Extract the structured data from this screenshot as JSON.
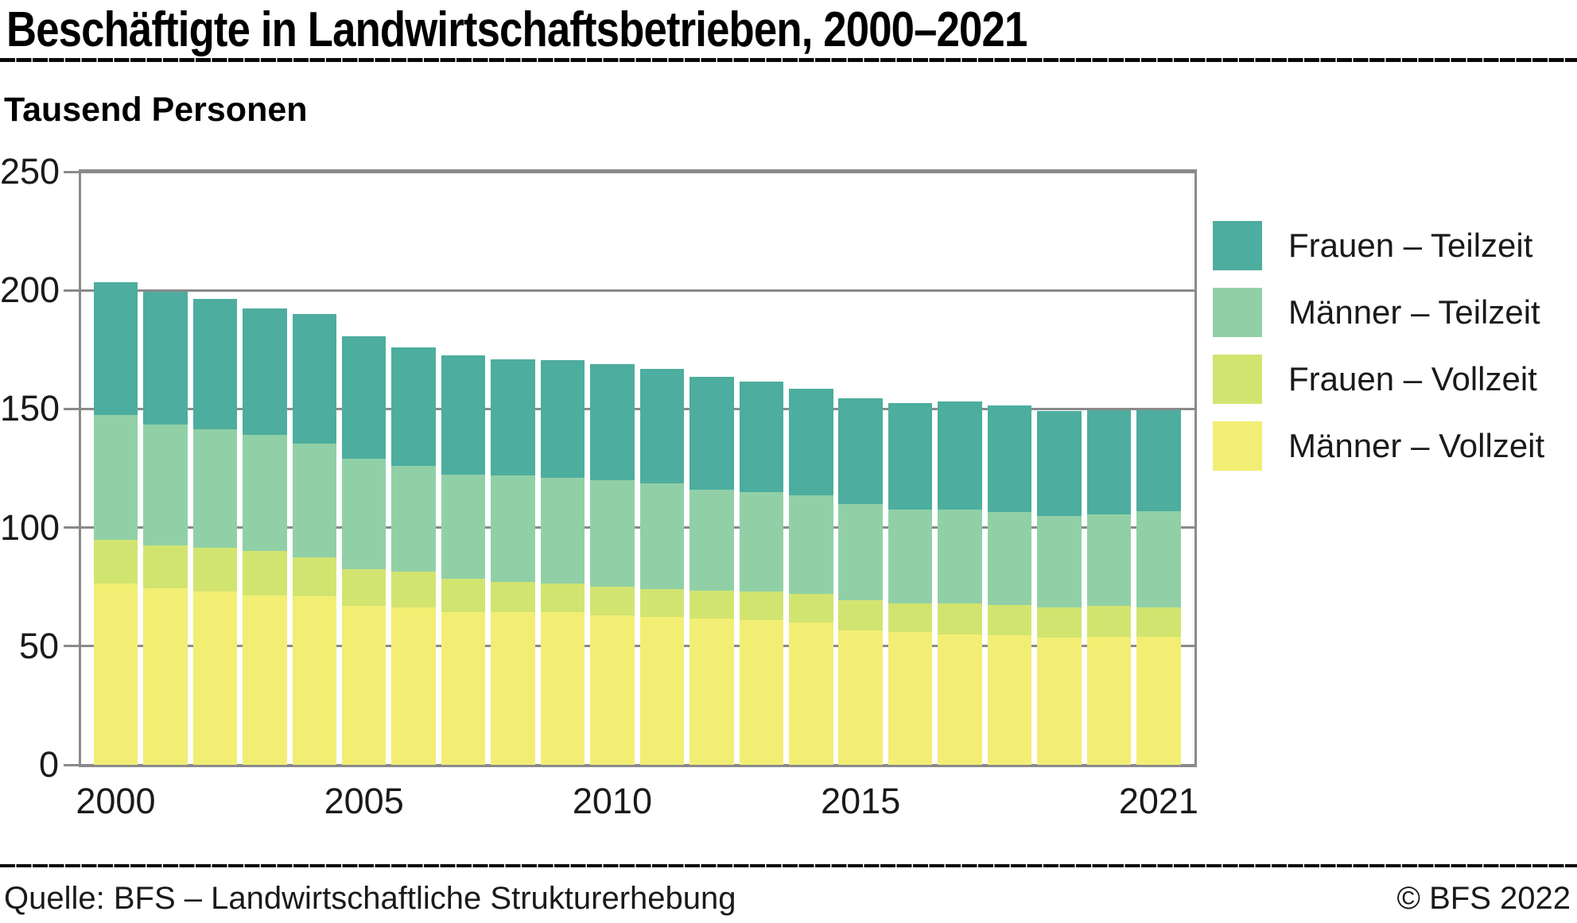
{
  "title": "Beschäftigte in Landwirtschaftsbetrieben, 2000–2021",
  "subtitle": "Tausend Personen",
  "footer": {
    "source": "Quelle: BFS – Landwirtschaftliche Strukturerhebung",
    "copyright": "© BFS 2022"
  },
  "colors": {
    "frauen_teilzeit": "#4DAD9E",
    "maenner_teilzeit": "#91D0A7",
    "frauen_vollzeit": "#D2E470",
    "maenner_vollzeit": "#F2EE74",
    "grid": "#8a8a8a",
    "rule": "#0a0a0a",
    "text": "#1a1a1a"
  },
  "legend": {
    "items": [
      {
        "label": "Frauen – Teilzeit",
        "color": "#4DAD9E"
      },
      {
        "label": "Männer – Teilzeit",
        "color": "#91D0A7"
      },
      {
        "label": "Frauen – Vollzeit",
        "color": "#D2E470"
      },
      {
        "label": "Männer – Vollzeit",
        "color": "#F2EE74"
      }
    ]
  },
  "chart_data": {
    "type": "bar",
    "stacked": true,
    "title": "Beschäftigte in Landwirtschaftsbetrieben, 2000–2021",
    "unit_label": "Tausend Personen",
    "categories": [
      2000,
      2001,
      2002,
      2003,
      2004,
      2005,
      2006,
      2007,
      2008,
      2009,
      2010,
      2011,
      2012,
      2013,
      2014,
      2015,
      2016,
      2017,
      2018,
      2019,
      2020,
      2021
    ],
    "series": [
      {
        "name": "Männer – Vollzeit",
        "color": "#F2EE74",
        "values": [
          76.5,
          74.5,
          73,
          71.5,
          71,
          67,
          66.5,
          64.5,
          64.5,
          64.5,
          63,
          62.5,
          61.5,
          61,
          60,
          56.5,
          56,
          55,
          54.5,
          53.5,
          54,
          54
        ]
      },
      {
        "name": "Frauen – Vollzeit",
        "color": "#D2E470",
        "values": [
          18.5,
          18,
          18.5,
          18.5,
          16.5,
          15.5,
          15,
          14,
          12.5,
          12,
          12,
          11.5,
          12,
          12,
          12,
          13,
          12,
          13,
          13,
          13,
          13,
          12.5
        ]
      },
      {
        "name": "Männer – Teilzeit",
        "color": "#91D0A7",
        "values": [
          52.5,
          51,
          50,
          49,
          48,
          46.5,
          44.5,
          44,
          45,
          44.5,
          45,
          44.5,
          42.5,
          42,
          41.5,
          40.5,
          39.5,
          39.5,
          39,
          38.5,
          38.5,
          40.5
        ]
      },
      {
        "name": "Frauen – Teilzeit",
        "color": "#4DAD9E",
        "values": [
          56,
          56,
          55,
          53.5,
          54.5,
          51.5,
          50,
          50,
          49,
          49.5,
          49,
          48.5,
          47.5,
          46.5,
          45,
          44.5,
          45,
          45.5,
          45,
          44,
          44,
          42.5
        ]
      }
    ],
    "totals": [
      203.5,
      199.5,
      196.5,
      192.5,
      190,
      180.5,
      176,
      172.5,
      171,
      170.5,
      169,
      167,
      163.5,
      161.5,
      158.5,
      154.5,
      152.5,
      153,
      151.5,
      149,
      149.5,
      149.5
    ],
    "ylim": [
      0,
      250
    ],
    "y_ticks": [
      0,
      50,
      100,
      150,
      200,
      250
    ],
    "x_tick_labels": [
      "2000",
      "2005",
      "2010",
      "2015",
      "2021"
    ],
    "x_tick_positions": [
      0,
      5,
      10,
      15,
      21
    ],
    "grid": true,
    "legend_position": "right",
    "legend_order_top_to_bottom": [
      "Frauen – Teilzeit",
      "Männer – Teilzeit",
      "Frauen – Vollzeit",
      "Männer – Vollzeit"
    ]
  }
}
